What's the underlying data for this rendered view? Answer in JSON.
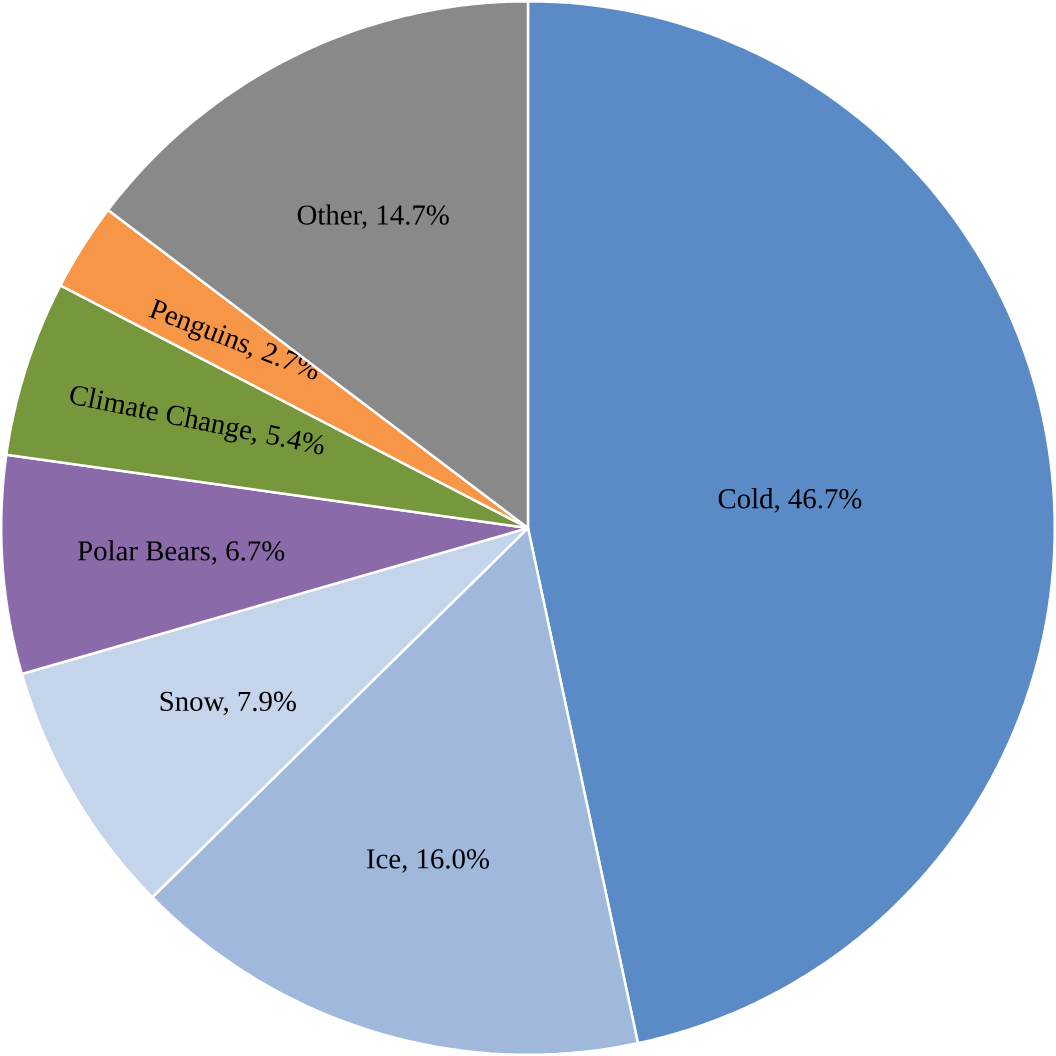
{
  "chart_data": {
    "type": "pie",
    "categories": [
      "Cold, 46.7%",
      "Ice, 16.0%",
      "Snow, 7.9%",
      "Polar Bears, 6.7%",
      "Climate Change, 5.4%",
      "Penguins, 2.7%",
      "Other, 14.7%"
    ],
    "values": [
      46.7,
      16.0,
      7.9,
      6.7,
      5.4,
      2.7,
      14.7
    ],
    "colors": [
      "#5b8bc6",
      "#9fb8dc",
      "#c4d4ea",
      "#8a6aa8",
      "#77973d",
      "#f79646",
      "#898989"
    ]
  }
}
